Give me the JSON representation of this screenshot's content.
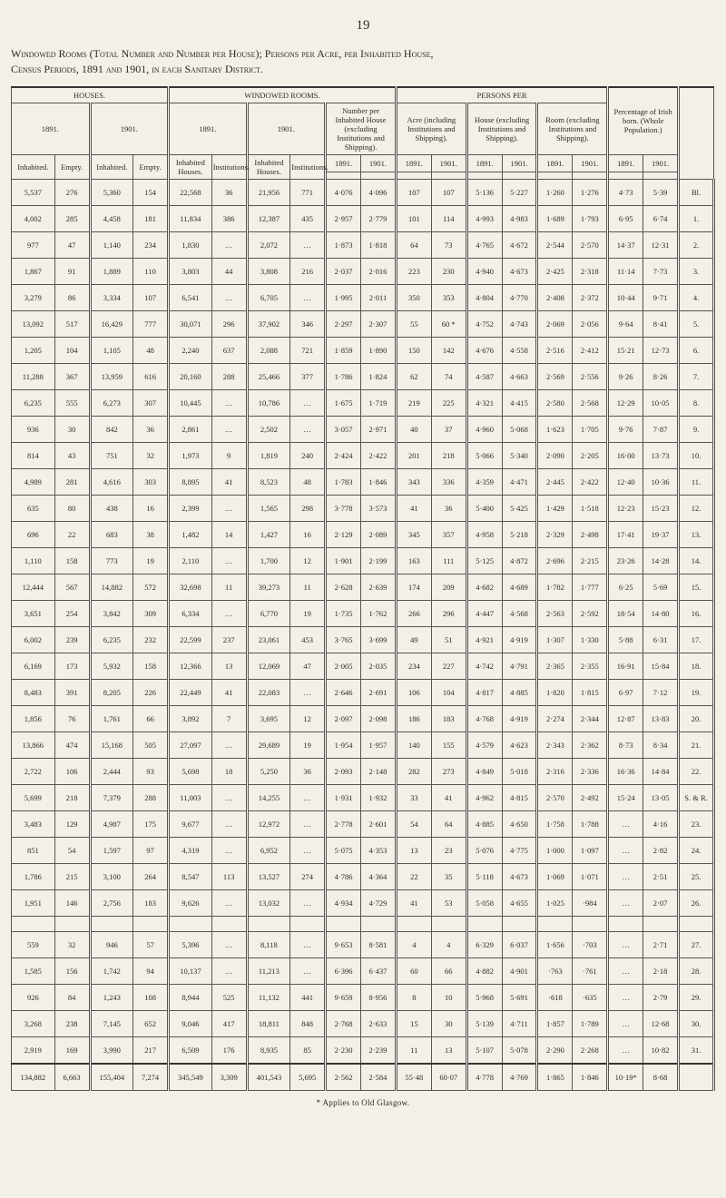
{
  "page_number": "19",
  "caption_line1_a": "Windowed Rooms (Total Number and Number per House); Persons per Acre, per Inhabited House,",
  "caption_line2_a": "Census Periods, 1891 and 1901, in each Sanitary District.",
  "headers": {
    "houses": "HOUSES.",
    "windowed": "WINDOWED ROOMS.",
    "persons": "PERSONS PER",
    "pct": "Percentage of Irish born. (Whole Population.)",
    "y1891": "1891.",
    "y1901": "1901.",
    "inhab": "Inhabited.",
    "empty": "Empty.",
    "inhab_h": "Inhabited Houses.",
    "instit": "Institutions.",
    "numper": "Number per Inhabited House (excluding Institutions and Shipping).",
    "acre": "Acre (including Institutions and Shipping).",
    "house_excl": "House (excluding Institutions and Shipping).",
    "room_excl": "Room (excluding Institutions and Shipping)."
  },
  "rows": [
    [
      "5,537",
      "276",
      "5,360",
      "154",
      "22,568",
      "36",
      "21,956",
      "771",
      "4·076",
      "4·096",
      "107",
      "107",
      "5·136",
      "5·227",
      "1·260",
      "1·276",
      "4·73",
      "5·39",
      "Bl."
    ],
    [
      "4,002",
      "285",
      "4,458",
      "181",
      "11,834",
      "386",
      "12,387",
      "435",
      "2·957",
      "2·779",
      "101",
      "114",
      "4·993",
      "4·983",
      "1·689",
      "1·793",
      "6·95",
      "6·74",
      "1."
    ],
    [
      "977",
      "47",
      "1,140",
      "234",
      "1,830",
      "…",
      "2,072",
      "…",
      "1·873",
      "1·818",
      "64",
      "73",
      "4·765",
      "4·672",
      "2·544",
      "2·570",
      "14·37",
      "12·31",
      "2."
    ],
    [
      "1,867",
      "91",
      "1,889",
      "110",
      "3,803",
      "44",
      "3,808",
      "216",
      "2·037",
      "2·016",
      "223",
      "230",
      "4·940",
      "4·673",
      "2·425",
      "2·318",
      "11·14",
      "7·73",
      "3."
    ],
    [
      "3,279",
      "86",
      "3,334",
      "107",
      "6,541",
      "…",
      "6,705",
      "…",
      "1·995",
      "2·011",
      "350",
      "353",
      "4·804",
      "4·770",
      "2·408",
      "2·372",
      "10·44",
      "9·71",
      "4."
    ],
    [
      "13,092",
      "517",
      "16,429",
      "777",
      "30,071",
      "296",
      "37,902",
      "346",
      "2·297",
      "2·307",
      "55",
      "60 *",
      "4·752",
      "4·743",
      "2·069",
      "2·056",
      "9·64",
      "8·41",
      "5."
    ],
    [
      "1,205",
      "104",
      "1,105",
      "48",
      "2,240",
      "637",
      "2,088",
      "721",
      "1·859",
      "1·890",
      "150",
      "142",
      "4·676",
      "4·558",
      "2·516",
      "2·412",
      "15·21",
      "12·73",
      "6."
    ],
    [
      "11,288",
      "367",
      "13,959",
      "616",
      "20,160",
      "288",
      "25,466",
      "377",
      "1·786",
      "1·824",
      "62",
      "74",
      "4·587",
      "4·663",
      "2·569",
      "2·556",
      "9·26",
      "8·26",
      "7."
    ],
    [
      "6,235",
      "555",
      "6,273",
      "307",
      "10,445",
      "…",
      "10,786",
      "…",
      "1·675",
      "1·719",
      "219",
      "225",
      "4·321",
      "4·415",
      "2·580",
      "2·568",
      "12·29",
      "10·05",
      "8."
    ],
    [
      "936",
      "30",
      "842",
      "36",
      "2,861",
      "…",
      "2,502",
      "…",
      "3·057",
      "2·971",
      "40",
      "37",
      "4·960",
      "5·068",
      "1·623",
      "1·705",
      "9·76",
      "7·87",
      "9."
    ],
    [
      "814",
      "43",
      "751",
      "32",
      "1,973",
      "9",
      "1,819",
      "240",
      "2·424",
      "2·422",
      "201",
      "218",
      "5·066",
      "5·340",
      "2·090",
      "2·205",
      "16·00",
      "13·73",
      "10."
    ],
    [
      "4,989",
      "281",
      "4,616",
      "303",
      "8,895",
      "41",
      "8,523",
      "48",
      "1·783",
      "1·846",
      "343",
      "336",
      "4·359",
      "4·471",
      "2·445",
      "2·422",
      "12·40",
      "10·36",
      "11."
    ],
    [
      "635",
      "80",
      "438",
      "16",
      "2,399",
      "…",
      "1,565",
      "298",
      "3·778",
      "3·573",
      "41",
      "36",
      "5·400",
      "5·425",
      "1·429",
      "1·518",
      "12·23",
      "15·23",
      "12."
    ],
    [
      "696",
      "22",
      "683",
      "38",
      "1,482",
      "14",
      "1,427",
      "16",
      "2·129",
      "2·089",
      "345",
      "357",
      "4·958",
      "5·218",
      "2·329",
      "2·498",
      "17·41",
      "19·37",
      "13."
    ],
    [
      "1,110",
      "158",
      "773",
      "19",
      "2,110",
      "…",
      "1,700",
      "12",
      "1·901",
      "2·199",
      "163",
      "111",
      "5·125",
      "4·872",
      "2·696",
      "2·215",
      "23·26",
      "14·28",
      "14."
    ],
    [
      "12,444",
      "567",
      "14,882",
      "572",
      "32,698",
      "11",
      "39,273",
      "11",
      "2·628",
      "2·639",
      "174",
      "209",
      "4·682",
      "4·689",
      "1·782",
      "1·777",
      "6·25",
      "5·69",
      "15."
    ],
    [
      "3,651",
      "254",
      "3,842",
      "309",
      "6,334",
      "…",
      "6,770",
      "19",
      "1·735",
      "1·762",
      "266",
      "296",
      "4·447",
      "4·568",
      "2·563",
      "2·592",
      "18·54",
      "14·80",
      "16."
    ],
    [
      "6,002",
      "239",
      "6,235",
      "232",
      "22,599",
      "237",
      "23,061",
      "453",
      "3·765",
      "3·699",
      "49",
      "51",
      "4·921",
      "4·919",
      "1·307",
      "1·330",
      "5·88",
      "6·31",
      "17."
    ],
    [
      "6,169",
      "173",
      "5,932",
      "158",
      "12,366",
      "13",
      "12,069",
      "47",
      "2·005",
      "2·035",
      "234",
      "227",
      "4·742",
      "4·791",
      "2·365",
      "2·355",
      "16·91",
      "15·84",
      "18."
    ],
    [
      "8,483",
      "391",
      "8,205",
      "226",
      "22,449",
      "41",
      "22,083",
      "…",
      "2·646",
      "2·691",
      "106",
      "104",
      "4·817",
      "4·885",
      "1·820",
      "1·815",
      "6·97",
      "7·12",
      "19."
    ],
    [
      "1,856",
      "76",
      "1,761",
      "66",
      "3,892",
      "7",
      "3,695",
      "12",
      "2·097",
      "2·098",
      "186",
      "183",
      "4·768",
      "4·919",
      "2·274",
      "2·344",
      "12·87",
      "13·83",
      "20."
    ],
    [
      "13,866",
      "474",
      "15,168",
      "505",
      "27,097",
      "…",
      "29,689",
      "19",
      "1·954",
      "1·957",
      "140",
      "155",
      "4·579",
      "4·623",
      "2·343",
      "2·362",
      "8·73",
      "8·34",
      "21."
    ],
    [
      "2,722",
      "106",
      "2,444",
      "93",
      "5,698",
      "18",
      "5,250",
      "36",
      "2·093",
      "2·148",
      "282",
      "273",
      "4·849",
      "5·018",
      "2·316",
      "2·336",
      "16·36",
      "14·84",
      "22."
    ],
    [
      "5,699",
      "218",
      "7,379",
      "288",
      "11,003",
      "…",
      "14,255",
      "…",
      "1·931",
      "1·932",
      "33",
      "41",
      "4·962",
      "4·815",
      "2·570",
      "2·492",
      "15·24",
      "13·05",
      "S. & R."
    ],
    [
      "3,483",
      "129",
      "4,987",
      "175",
      "9,677",
      "…",
      "12,972",
      "…",
      "2·778",
      "2·601",
      "54",
      "64",
      "4·885",
      "4·650",
      "1·758",
      "1·788",
      "…",
      "4·16",
      "23."
    ],
    [
      "851",
      "54",
      "1,597",
      "97",
      "4,319",
      "…",
      "6,952",
      "…",
      "5·075",
      "4·353",
      "13",
      "23",
      "5·076",
      "4·775",
      "1·000",
      "1·097",
      "…",
      "2·82",
      "24."
    ],
    [
      "1,786",
      "215",
      "3,100",
      "264",
      "8,547",
      "113",
      "13,527",
      "274",
      "4·786",
      "4·364",
      "22",
      "35",
      "5·118",
      "4·673",
      "1·069",
      "1·071",
      "…",
      "2·51",
      "25."
    ],
    [
      "1,951",
      "146",
      "2,756",
      "183",
      "9,626",
      "…",
      "13,032",
      "…",
      "4·934",
      "4·729",
      "41",
      "53",
      "5·058",
      "4·655",
      "1·025",
      "·984",
      "…",
      "2·07",
      "26."
    ],
    [
      "559",
      "32",
      "946",
      "57",
      "5,396",
      "…",
      "8,118",
      "…",
      "9·653",
      "8·581",
      "4",
      "4",
      "6·329",
      "6·037",
      "1·656",
      "·703",
      "…",
      "2·71",
      "27."
    ],
    [
      "1,585",
      "156",
      "1,742",
      "94",
      "10,137",
      "…",
      "11,213",
      "…",
      "6·396",
      "6·437",
      "60",
      "66",
      "4·882",
      "4·901",
      "·763",
      "·761",
      "…",
      "2·18",
      "28."
    ],
    [
      "926",
      "84",
      "1,243",
      "108",
      "8,944",
      "525",
      "11,132",
      "441",
      "9·659",
      "8·956",
      "8",
      "10",
      "5·968",
      "5·691",
      "·618",
      "·635",
      "…",
      "2·79",
      "29."
    ],
    [
      "3,268",
      "238",
      "7,145",
      "652",
      "9,046",
      "417",
      "18,811",
      "848",
      "2·768",
      "2·633",
      "15",
      "30",
      "5·139",
      "4·711",
      "1·857",
      "1·789",
      "…",
      "12·68",
      "30."
    ],
    [
      "2,919",
      "169",
      "3,990",
      "217",
      "6,509",
      "176",
      "8,935",
      "85",
      "2·230",
      "2·239",
      "11",
      "13",
      "5·107",
      "5·078",
      "2·290",
      "2·268",
      "…",
      "10·82",
      "31."
    ]
  ],
  "total": [
    "134,882",
    "6,663",
    "155,404",
    "7,274",
    "345,549",
    "3,309",
    "401,543",
    "5,695",
    "2·562",
    "2·584",
    "55·48",
    "60·07",
    "4·778",
    "4·769",
    "1·865",
    "1·846",
    "10·19*",
    "8·68",
    ""
  ],
  "footnote": "* Applies to Old Glasgow.",
  "gap_after_index": 27,
  "dbl_right_cols": [
    1,
    3,
    5,
    7,
    9,
    11,
    13,
    15,
    17,
    18
  ]
}
